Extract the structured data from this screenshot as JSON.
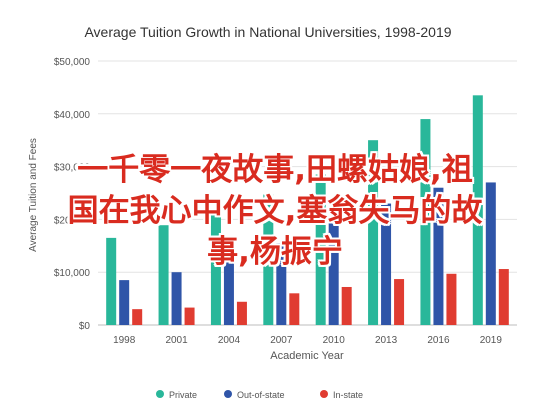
{
  "chart_data": {
    "type": "bar",
    "title": "Average Tuition Growth in National Universities, 1998-2019",
    "xlabel": "Academic Year",
    "ylabel": "Average Tuition and Fees",
    "categories": [
      "1998",
      "2001",
      "2004",
      "2007",
      "2010",
      "2013",
      "2016",
      "2019"
    ],
    "ylim": [
      0,
      50000
    ],
    "yticks": [
      {
        "value": 0,
        "label": "$0"
      },
      {
        "value": 10000,
        "label": "$10,000"
      },
      {
        "value": 20000,
        "label": "$20,000"
      },
      {
        "value": 30000,
        "label": "$30,000"
      },
      {
        "value": 40000,
        "label": "$40,000"
      },
      {
        "value": 50000,
        "label": "$50,000"
      }
    ],
    "grid": true,
    "legend_position": "bottom",
    "series": [
      {
        "name": "Private",
        "color": "#29b79a",
        "values": [
          16500,
          18900,
          21400,
          24700,
          28500,
          35000,
          39000,
          43500
        ]
      },
      {
        "name": "Out-of-state",
        "color": "#2f55a8",
        "values": [
          8500,
          10000,
          12500,
          15500,
          19500,
          23000,
          26000,
          27000
        ]
      },
      {
        "name": "In-state",
        "color": "#e03c31",
        "values": [
          3000,
          3300,
          4400,
          6000,
          7200,
          8700,
          9700,
          10600
        ]
      }
    ]
  },
  "overlay_text": {
    "line1": "一千零一夜故事,田螺姑娘,祖",
    "line2": "国在我心中作文,塞翁失马的故",
    "line3": "事,杨振宁"
  }
}
